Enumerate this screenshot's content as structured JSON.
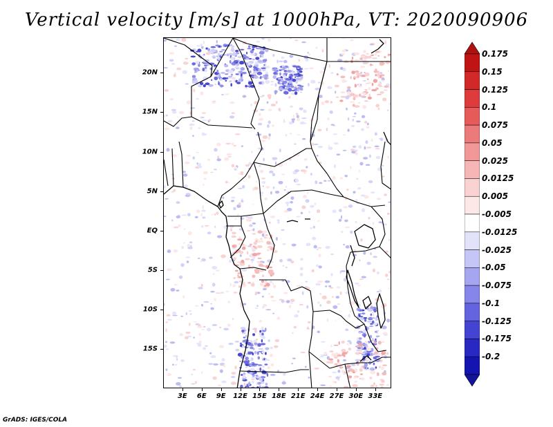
{
  "title": "Vertical velocity [m/s] at 1000hPa, VT: 2020090906",
  "footer": "GrADS: IGES/COLA",
  "map": {
    "lon_range_deg": [
      0,
      35.5
    ],
    "lat_range_deg": [
      -20,
      24.5
    ],
    "lat_ticks": [
      "20N",
      "15N",
      "10N",
      "5N",
      "EQ",
      "5S",
      "10S",
      "15S"
    ],
    "lat_values": [
      20,
      15,
      10,
      5,
      0,
      -5,
      -10,
      -15
    ],
    "lon_ticks": [
      "3E",
      "6E",
      "9E",
      "12E",
      "15E",
      "18E",
      "21E",
      "24E",
      "27E",
      "30E",
      "33E"
    ],
    "lon_values": [
      3,
      6,
      9,
      12,
      15,
      18,
      21,
      24,
      27,
      30,
      33
    ]
  },
  "colorbar": {
    "labels": [
      "0.175",
      "0.15",
      "0.125",
      "0.1",
      "0.075",
      "0.05",
      "0.025",
      "0.0125",
      "0.005",
      "-0.005",
      "-0.0125",
      "-0.025",
      "-0.05",
      "-0.075",
      "-0.1",
      "-0.125",
      "-0.175",
      "-0.2"
    ],
    "colors": [
      "#c01414",
      "#d22828",
      "#de3c3c",
      "#e65a5a",
      "#ec7a7a",
      "#f29898",
      "#f6b6b6",
      "#fad2d2",
      "#fde8e8",
      "#ffffff",
      "#e2e2fa",
      "#c6c6f6",
      "#a6a6f0",
      "#8686ea",
      "#6464e0",
      "#4444d2",
      "#2828c2",
      "#1414b0"
    ],
    "top_cap_color": "#b01010",
    "bottom_cap_color": "#14149a"
  }
}
